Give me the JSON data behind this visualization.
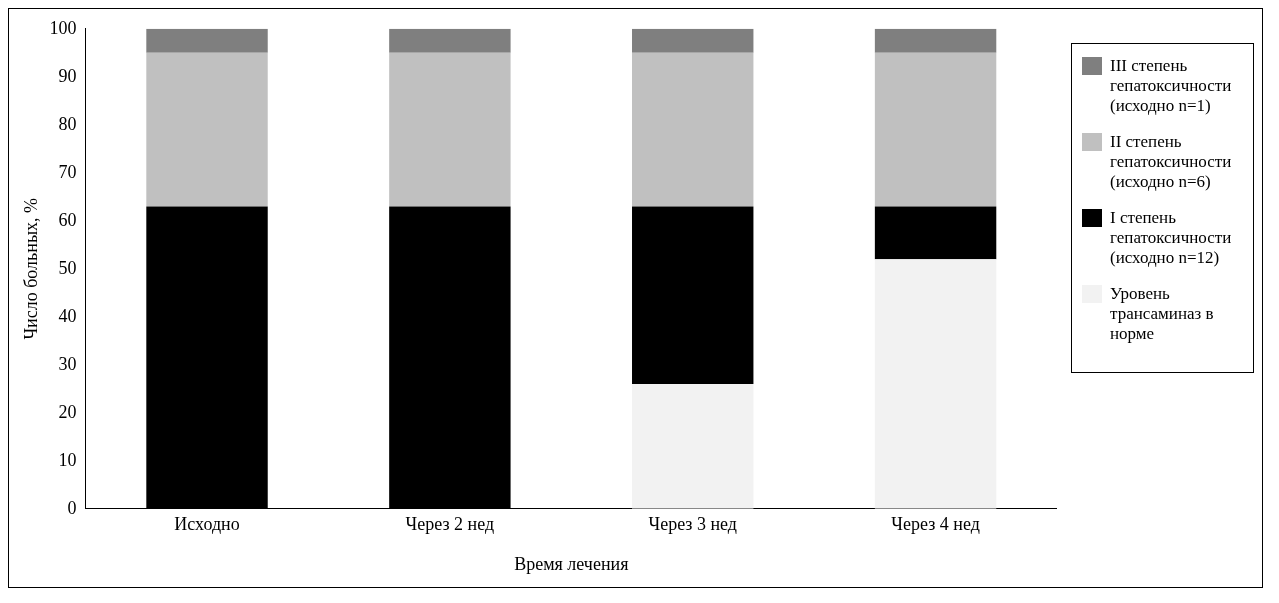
{
  "chart_data": {
    "type": "bar",
    "stacked": true,
    "xlabel": "Время лечения",
    "ylabel": "Число больных, %",
    "categories": [
      "Исходно",
      "Через 2 нед",
      "Через 3 нед",
      "Через 4 нед"
    ],
    "series": [
      {
        "name": "Уровень трансаминаз в норме",
        "color": "#f2f2f2",
        "values": [
          0,
          0,
          26,
          52
        ]
      },
      {
        "name": "I степень гепатоксичности (исходно n=12)",
        "color": "#000000",
        "values": [
          63,
          63,
          37,
          11
        ]
      },
      {
        "name": "II степень гепатоксичности (исходно n=6)",
        "color": "#c0c0c0",
        "values": [
          32,
          32,
          32,
          32
        ]
      },
      {
        "name": "III степень гепатоксичности (исходно n=1)",
        "color": "#7f7f7f",
        "values": [
          5,
          5,
          5,
          5
        ]
      }
    ],
    "ylim": [
      0,
      100
    ],
    "yticks": [
      0,
      10,
      20,
      30,
      40,
      50,
      60,
      70,
      80,
      90,
      100
    ],
    "grid": false,
    "legend": "right"
  }
}
